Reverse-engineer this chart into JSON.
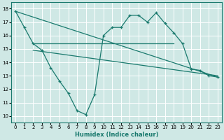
{
  "xlabel": "Humidex (Indice chaleur)",
  "xlim": [
    -0.5,
    23.5
  ],
  "ylim": [
    9.5,
    18.5
  ],
  "xticks": [
    0,
    1,
    2,
    3,
    4,
    5,
    6,
    7,
    8,
    9,
    10,
    11,
    12,
    13,
    14,
    15,
    16,
    17,
    18,
    19,
    20,
    21,
    22,
    23
  ],
  "yticks": [
    10,
    11,
    12,
    13,
    14,
    15,
    16,
    17,
    18
  ],
  "background_color": "#cfe8e5",
  "grid_color": "#ffffff",
  "line_color": "#1a7a6e",
  "line1_x": [
    0,
    1,
    2,
    3,
    4,
    5,
    6,
    7,
    8,
    9,
    10,
    11,
    12,
    13,
    14,
    15,
    16,
    17,
    18,
    19,
    20,
    21,
    22,
    23
  ],
  "line1_y": [
    17.8,
    16.6,
    15.4,
    14.9,
    13.6,
    12.6,
    11.7,
    10.4,
    10.1,
    11.6,
    16.0,
    16.6,
    16.6,
    17.5,
    17.5,
    17.0,
    17.7,
    16.9,
    16.2,
    15.4,
    13.5,
    13.4,
    13.0,
    12.9
  ],
  "line2_x": [
    0,
    23
  ],
  "line2_y": [
    17.8,
    12.9
  ],
  "line3_x": [
    2,
    18
  ],
  "line3_y": [
    15.4,
    15.4
  ],
  "line4_x": [
    2,
    23
  ],
  "line4_y": [
    14.9,
    13.0
  ]
}
